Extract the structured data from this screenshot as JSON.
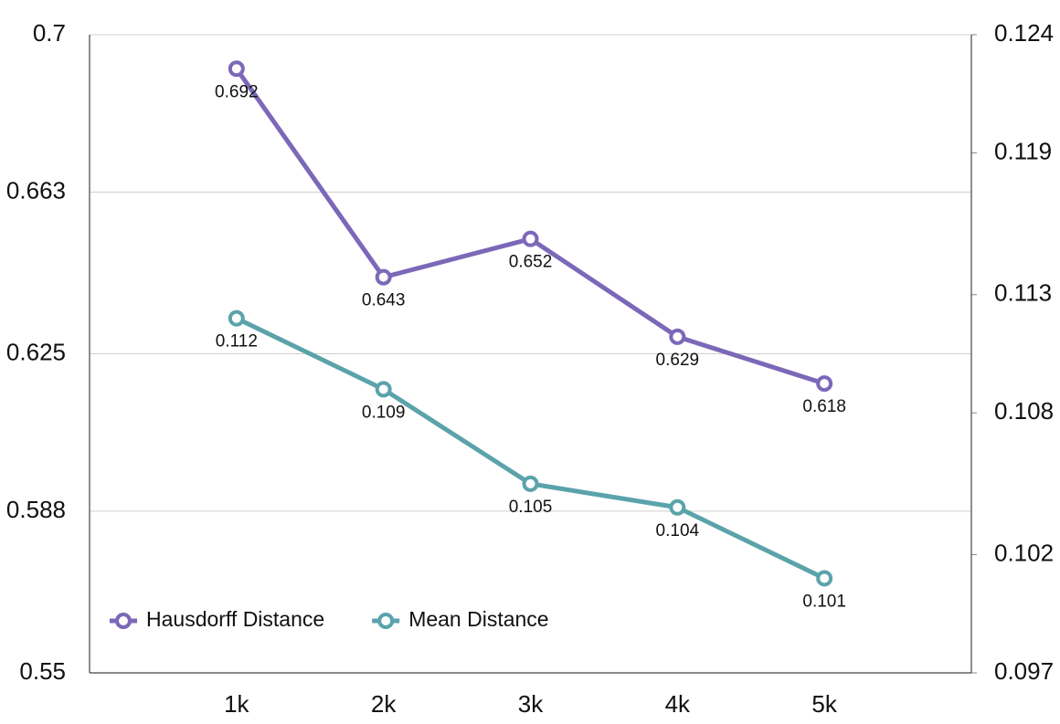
{
  "chart_data": {
    "type": "line",
    "categories": [
      "1k",
      "2k",
      "3k",
      "4k",
      "5k"
    ],
    "series": [
      {
        "name": "Hausdorff Distance",
        "color": "#7b68b8",
        "values": [
          0.692,
          0.643,
          0.652,
          0.629,
          0.618
        ]
      },
      {
        "name": "Mean Distance",
        "color": "#5ba3ab",
        "axis": "y2",
        "values": [
          0.112,
          0.109,
          0.105,
          0.104,
          0.101
        ]
      }
    ],
    "ylim": [
      0.55,
      0.7
    ],
    "yticks": [
      0.55,
      0.588,
      0.625,
      0.663,
      0.7
    ],
    "y2lim": [
      0.097,
      0.124
    ],
    "y2ticks": [
      0.097,
      0.102,
      0.108,
      0.113,
      0.119,
      0.124
    ],
    "grid": true,
    "legend": "lower left",
    "data_labels": true
  }
}
